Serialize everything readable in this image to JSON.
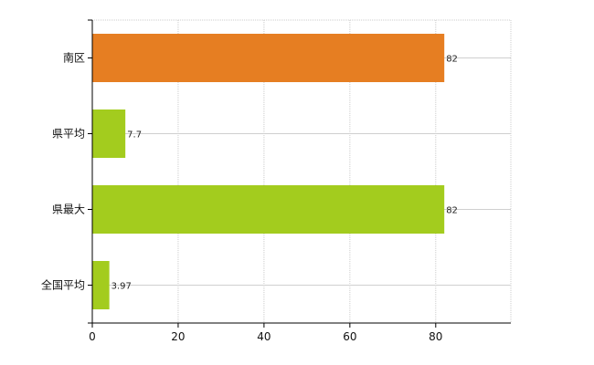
{
  "chart_data": {
    "type": "bar",
    "orientation": "horizontal",
    "categories": [
      "南区",
      "県平均",
      "県最大",
      "全国平均"
    ],
    "values": [
      82,
      7.7,
      82,
      3.97
    ],
    "data_labels": [
      "82",
      "7.7",
      "82",
      "3.97"
    ],
    "bar_colors": [
      "#e67e22",
      "#a3cc1e",
      "#a3cc1e",
      "#a3cc1e"
    ],
    "xlim": [
      0,
      97.5
    ],
    "x_ticks": [
      0,
      20,
      40,
      60,
      80
    ],
    "x_tick_labels": [
      "0",
      "20",
      "40",
      "60",
      "80"
    ],
    "grid": true,
    "legend": "none",
    "title": "",
    "xlabel": "",
    "ylabel": ""
  }
}
